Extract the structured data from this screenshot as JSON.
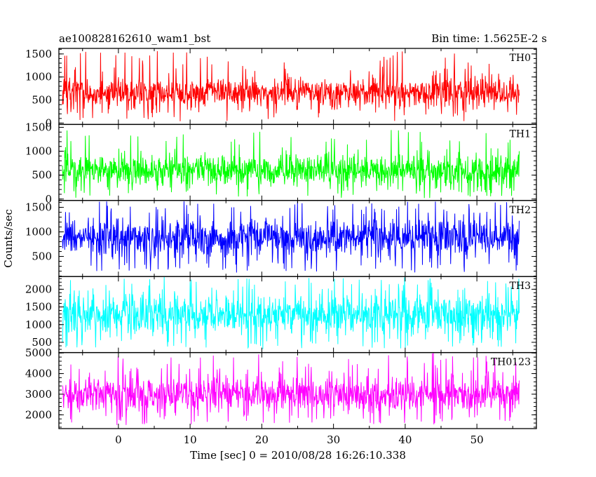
{
  "header": {
    "left": "ae100828162610_wam1_bst",
    "right": "Bin time: 1.5625E-2 s"
  },
  "chart_data": {
    "type": "line",
    "xlabel": "Time [sec] 0 = 2010/08/28 16:26:10.338",
    "ylabel": "Counts/sec",
    "xlim": [
      -8.3,
      58.3
    ],
    "data_x_range": [
      -7.8,
      55.9
    ],
    "x_ticks": [
      0,
      10,
      20,
      30,
      40,
      50
    ],
    "x_tick_labels": [
      "0",
      "10",
      "20",
      "30",
      "40",
      "50"
    ],
    "bin_time_s": 0.015625,
    "panels": [
      {
        "name": "TH0",
        "color": "#ff0000",
        "ylim": [
          -30,
          1620
        ],
        "y_ticks": [
          0,
          500,
          1000,
          1500
        ],
        "y_tick_labels": [
          "0",
          "500",
          "1000",
          "1500"
        ],
        "mean": 660,
        "noise_sd": 165,
        "peak_min": 1020,
        "peak_max": 1580,
        "trough_min": 40,
        "trough_max": 320
      },
      {
        "name": "TH1",
        "color": "#00ff00",
        "ylim": [
          -30,
          1560
        ],
        "y_ticks": [
          0,
          500,
          1000,
          1500
        ],
        "y_tick_labels": [
          "0",
          "500",
          "1000",
          "1500"
        ],
        "mean": 600,
        "noise_sd": 165,
        "peak_min": 1000,
        "peak_max": 1460,
        "trough_min": 20,
        "trough_max": 260
      },
      {
        "name": "TH2",
        "color": "#0000ff",
        "ylim": [
          90,
          1640
        ],
        "y_ticks": [
          500,
          1000,
          1500
        ],
        "y_tick_labels": [
          "500",
          "1000",
          "1500"
        ],
        "mean": 880,
        "noise_sd": 200,
        "peak_min": 1380,
        "peak_max": 1640,
        "trough_min": 170,
        "trough_max": 380
      },
      {
        "name": "TH3",
        "color": "#00ffff",
        "ylim": [
          210,
          2360
        ],
        "y_ticks": [
          500,
          1000,
          1500,
          2000
        ],
        "y_tick_labels": [
          "500",
          "1000",
          "1500",
          "2000"
        ],
        "mean": 1280,
        "noise_sd": 280,
        "peak_min": 1950,
        "peak_max": 2360,
        "trough_min": 300,
        "trough_max": 620
      },
      {
        "name": "TH0123",
        "color": "#ff00ff",
        "ylim": [
          1330,
          5020
        ],
        "y_ticks": [
          2000,
          3000,
          4000,
          5000
        ],
        "y_tick_labels": [
          "2000",
          "3000",
          "4000",
          "5000"
        ],
        "mean": 3000,
        "noise_sd": 420,
        "peak_min": 4100,
        "peak_max": 5000,
        "trough_min": 1500,
        "trough_max": 2000
      }
    ]
  }
}
